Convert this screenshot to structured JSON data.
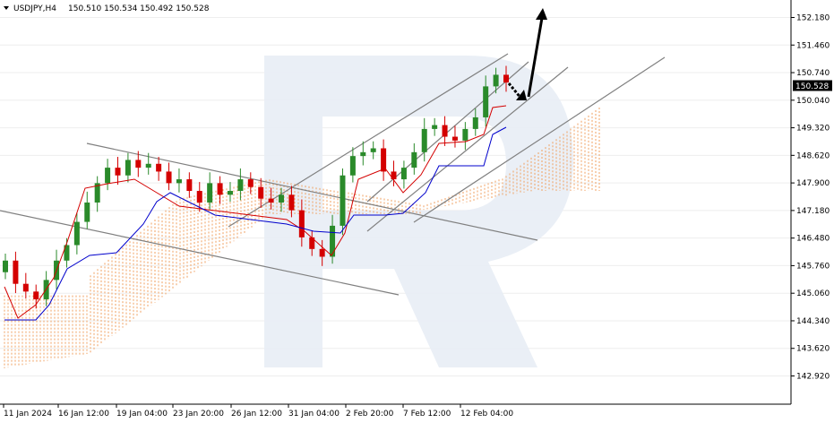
{
  "header": {
    "symbol": "USDJPY,H4",
    "ohlc": "150.510 150.534 150.492 150.528"
  },
  "current_price": "150.528",
  "colors": {
    "background": "#ffffff",
    "grid": "#eeeeee",
    "bull_candle": "#2a8a2a",
    "bear_candle": "#d40000",
    "tenkan": "#d40000",
    "kijun": "#0000cc",
    "cloud": "#f0a060",
    "trendlines": "#808080",
    "watermark": "#e8edf5"
  },
  "icons": [
    "dropdown-triangle-icon",
    "forecast-arrow-icon"
  ],
  "chart_data": {
    "type": "candlestick",
    "symbol": "USDJPY",
    "timeframe": "H4",
    "y_ticks": [
      "152.180",
      "151.460",
      "150.740",
      "150.040",
      "149.320",
      "148.620",
      "147.900",
      "147.180",
      "146.480",
      "145.760",
      "145.060",
      "144.340",
      "143.620",
      "142.920"
    ],
    "x_ticks": [
      "11 Jan 2024",
      "16 Jan 12:00",
      "19 Jan 04:00",
      "23 Jan 20:00",
      "26 Jan 12:00",
      "31 Jan 04:00",
      "2 Feb 20:00",
      "7 Feb 12:00",
      "12 Feb 04:00"
    ],
    "ylim": [
      142.92,
      152.18
    ],
    "grid": true,
    "indicators": [
      "Ichimoku Tenkan-sen",
      "Ichimoku Kijun-sen",
      "Ichimoku Cloud"
    ],
    "closes_approx": [
      145.9,
      145.3,
      145.1,
      144.9,
      145.4,
      145.9,
      146.3,
      146.9,
      147.4,
      147.9,
      148.3,
      148.1,
      148.5,
      148.3,
      148.4,
      148.2,
      147.9,
      148.0,
      147.7,
      147.4,
      147.9,
      147.6,
      147.7,
      148.0,
      147.8,
      147.5,
      147.4,
      147.6,
      147.2,
      146.5,
      146.2,
      146.0,
      146.8,
      148.1,
      148.6,
      148.7,
      148.8,
      148.2,
      148.0,
      148.3,
      148.7,
      149.3,
      149.4,
      149.1,
      149.0,
      149.3,
      149.6,
      150.4,
      150.7,
      150.5
    ],
    "annotations": [
      "forecast: pullback towards lower channel boundary, then rise towards 152.18"
    ]
  }
}
